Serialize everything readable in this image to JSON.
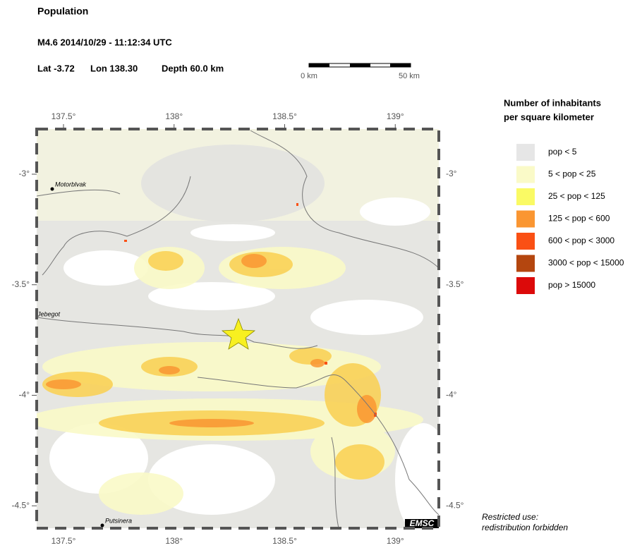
{
  "header": {
    "title": "Population",
    "event": "M4.6  2014/10/29 - 11:12:34 UTC",
    "lat": "Lat -3.72",
    "lon": "Lon 138.30",
    "depth": "Depth  60.0 km"
  },
  "scale_bar": {
    "start": "0 km",
    "end": "50 km"
  },
  "map": {
    "lon_ticks": [
      {
        "value": 137.5,
        "label": "137.5°"
      },
      {
        "value": 138,
        "label": "138°"
      },
      {
        "value": 138.5,
        "label": "138.5°"
      },
      {
        "value": 139,
        "label": "139°"
      }
    ],
    "lat_ticks": [
      {
        "value": -3,
        "label": "-3°"
      },
      {
        "value": -3.5,
        "label": "-3.5°"
      },
      {
        "value": -4,
        "label": "-4°"
      },
      {
        "value": -4.5,
        "label": "-4.5°"
      }
    ],
    "places": [
      "Motorblvak",
      "Jebegot",
      "Putsinera"
    ],
    "credit": "EMSC"
  },
  "legend": {
    "title": [
      "Number of inhabitants",
      "per square kilometer"
    ],
    "items": [
      {
        "label": "pop < 5",
        "color": "#e6e6e6"
      },
      {
        "label": "5 < pop < 25",
        "color": "#fafac8"
      },
      {
        "label": "25 < pop < 125",
        "color": "#fafa64"
      },
      {
        "label": "125 < pop < 600",
        "color": "#fa9632"
      },
      {
        "label": "600 < pop < 3000",
        "color": "#fa5014"
      },
      {
        "label": "3000 < pop < 15000",
        "color": "#b4460f"
      },
      {
        "label": "pop > 15000",
        "color": "#dc0a0a"
      }
    ]
  },
  "footer": [
    "Restricted use:",
    "redistribution forbidden"
  ]
}
